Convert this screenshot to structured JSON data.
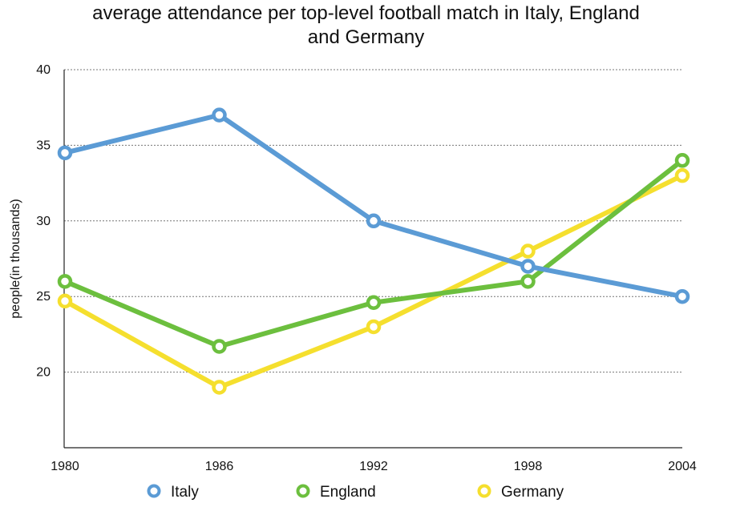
{
  "chart_data": {
    "type": "line",
    "title_lines": [
      "average attendance per top-level football match in Italy, England",
      "and Germany"
    ],
    "xlabel": "",
    "ylabel": "people(in thousands)",
    "categories": [
      "1980",
      "1986",
      "1992",
      "1998",
      "2004"
    ],
    "ylim": [
      15,
      40
    ],
    "y_ticks": [
      20,
      25,
      30,
      35,
      40
    ],
    "grid": "horizontal dotted",
    "legend_position": "bottom",
    "series": [
      {
        "name": "Italy",
        "color": "#5B9BD5",
        "values": [
          34.5,
          37,
          30,
          27,
          25
        ]
      },
      {
        "name": "England",
        "color": "#6CBF3E",
        "values": [
          26,
          21.7,
          24.6,
          26,
          34
        ]
      },
      {
        "name": "Germany",
        "color": "#F5DF2E",
        "values": [
          24.7,
          19,
          23,
          28,
          33
        ]
      }
    ]
  }
}
